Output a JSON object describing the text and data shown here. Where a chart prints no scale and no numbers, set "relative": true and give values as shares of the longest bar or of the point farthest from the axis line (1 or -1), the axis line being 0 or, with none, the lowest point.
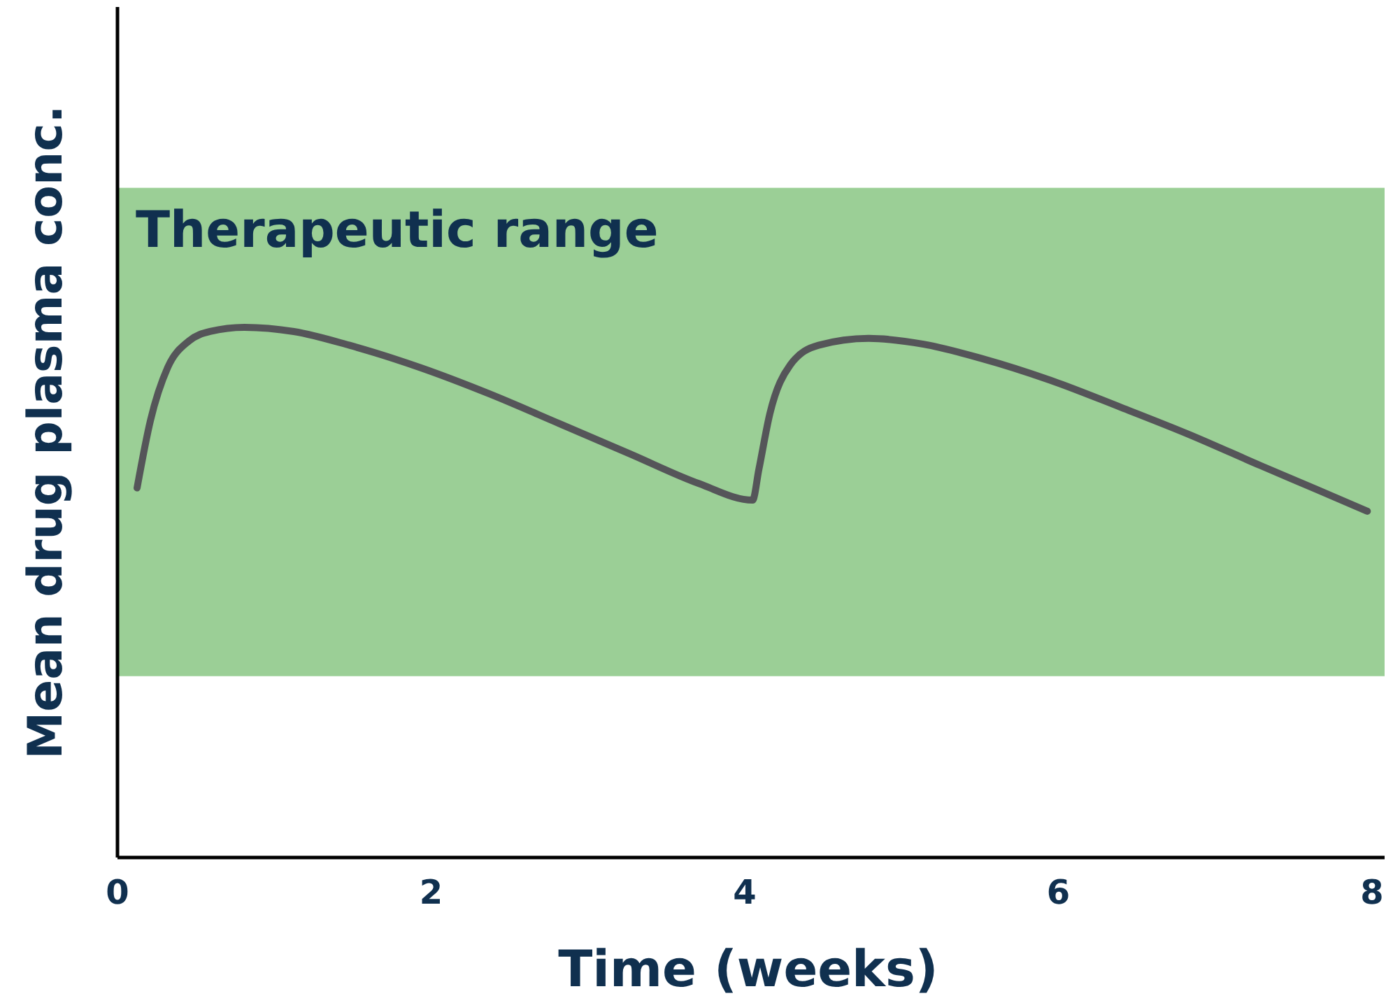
{
  "chart_data": {
    "type": "line",
    "xlabel": "Time (weeks)",
    "ylabel": "Mean drug plasma conc.",
    "relative": true,
    "xlim": [
      0,
      8.08
    ],
    "xticks": [
      0,
      2,
      4,
      6,
      8
    ],
    "tick_labels": "x",
    "grid": false,
    "line_style": "solid",
    "bands": [
      {
        "axis": "y",
        "from": 0.342,
        "to": 1.263,
        "label": "Therapeutic range",
        "color": "#9bcf96"
      }
    ],
    "series": [
      {
        "color": "#555559",
        "x": [
          0.125,
          0.21,
          0.32,
          0.455,
          0.59,
          0.81,
          1.125,
          1.48,
          1.93,
          2.375,
          2.82,
          3.27,
          3.71,
          4.05,
          4.09,
          4.16,
          4.29,
          4.47,
          4.79,
          5.14,
          5.5,
          5.95,
          6.39,
          6.84,
          7.29,
          7.64,
          7.97
        ],
        "values": [
          0.697,
          0.824,
          0.924,
          0.974,
          0.992,
          1.0,
          0.992,
          0.966,
          0.924,
          0.874,
          0.818,
          0.761,
          0.705,
          0.674,
          0.732,
          0.837,
          0.929,
          0.966,
          0.979,
          0.968,
          0.942,
          0.9,
          0.85,
          0.797,
          0.739,
          0.695,
          0.653
        ]
      }
    ]
  }
}
